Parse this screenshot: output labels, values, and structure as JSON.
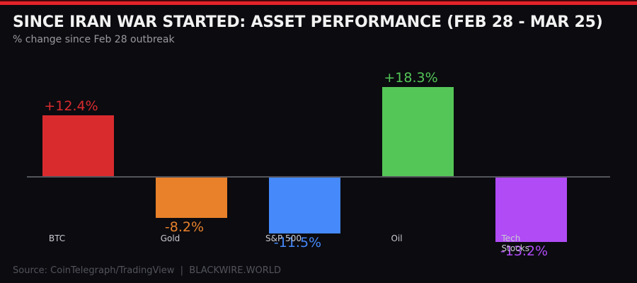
{
  "header": {
    "title": "SINCE IRAN WAR STARTED: ASSET PERFORMANCE (FEB 28 - MAR 25)",
    "subtitle": "% change since Feb 28 outbreak"
  },
  "footer": {
    "source": "Source: CoinTelegraph/TradingView  |  BLACKWIRE.WORLD"
  },
  "colors": {
    "accent_red": "#e3232a",
    "background": "#0b0b10",
    "zero_line": "#53535b",
    "title_text": "#f2f2f2",
    "subtitle_text": "#99999e",
    "tick_text": "#c9cad1",
    "source_text": "#53535c"
  },
  "chart_data": {
    "type": "bar",
    "title": "SINCE IRAN WAR STARTED: ASSET PERFORMANCE (FEB 28 - MAR 25)",
    "subtitle": "% change since Feb 28 outbreak",
    "categories": [
      "BTC",
      "Gold",
      "S&P 500",
      "Oil",
      "Tech Stocks"
    ],
    "values": [
      12.4,
      -8.2,
      -11.5,
      18.3,
      -13.2
    ],
    "value_labels": [
      "+12.4%",
      "-8.2%",
      "-11.5%",
      "+18.3%",
      "-13.2%"
    ],
    "tick_labels": [
      "BTC",
      "Gold",
      "S&P 500",
      "Oil",
      "Tech\nStocks"
    ],
    "bar_colors": [
      "#d92b2e",
      "#e8812a",
      "#4589fb",
      "#54c657",
      "#b04bf5"
    ],
    "xlabel": "",
    "ylabel": "% change",
    "baseline": 0,
    "ylim": [
      -15,
      20
    ],
    "grid": false,
    "legend": false
  }
}
